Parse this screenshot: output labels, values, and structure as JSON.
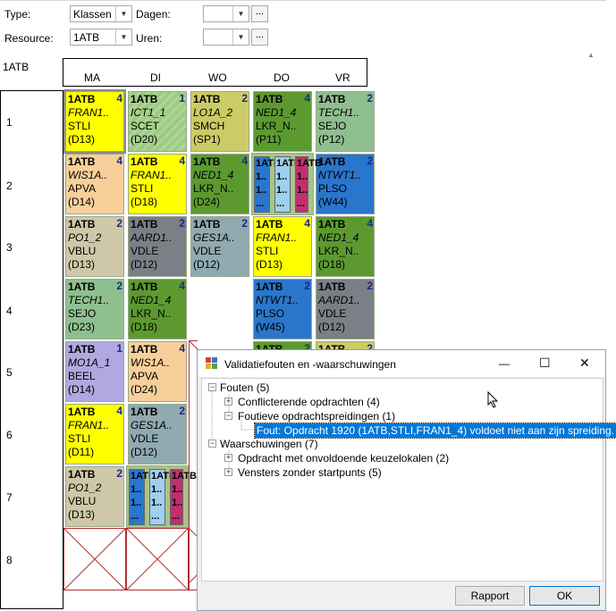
{
  "filters": {
    "type_label": "Type:",
    "type_value": "Klassen",
    "dagen_label": "Dagen:",
    "dagen_value": "",
    "resource_label": "Resource:",
    "resource_value": "1ATB",
    "uren_label": "Uren:",
    "uren_value": "",
    "ellipsis": "..."
  },
  "grid": {
    "class_label": "1ATB",
    "days": [
      "MA",
      "DI",
      "WO",
      "DO",
      "VR"
    ],
    "periods": [
      "1",
      "2",
      "3",
      "4",
      "5",
      "6",
      "7",
      "8"
    ]
  },
  "cards": [
    {
      "t": "1ATB",
      "n": "4",
      "c": "FRAN1..",
      "te": "STLI",
      "r": "(D13)",
      "bg": "#ffff00"
    },
    {
      "t": "1ATB",
      "n": "1",
      "c": "ICT1_1",
      "te": "SCET",
      "r": "(D20)",
      "bg": "#9ccc80"
    },
    {
      "t": "1ATB",
      "n": "2",
      "c": "LO1A_2",
      "te": "SMCH",
      "r": "(SP1)",
      "bg": "#cccc66"
    },
    {
      "t": "1ATB",
      "n": "4",
      "c": "NED1_4",
      "te": "LKR_N..",
      "r": "(P11)",
      "bg": "#5c9a30"
    },
    {
      "t": "1ATB",
      "n": "2",
      "c": "TECH1..",
      "te": "SEJO",
      "r": "(P12)",
      "bg": "#8fbf8f"
    },
    {
      "t": "1ATB",
      "n": "4",
      "c": "WIS1A..",
      "te": "APVA",
      "r": "(D14)",
      "bg": "#f7cf9a"
    },
    {
      "t": "1ATB",
      "n": "4",
      "c": "FRAN1..",
      "te": "STLI",
      "r": "(D18)",
      "bg": "#ffff00"
    },
    {
      "t": "1ATB",
      "n": "4",
      "c": "NED1_4",
      "te": "LKR_N..",
      "r": "(D24)",
      "bg": "#5c9a30"
    },
    {
      "t": "1ATB",
      "n": "2",
      "c": "NTWT1..",
      "te": "PLSO",
      "r": "(W44)",
      "bg": "#2a76cc"
    },
    {
      "t": "1ATB",
      "n": "2",
      "c": "PO1_2",
      "te": "VBLU",
      "r": "(D13)",
      "bg": "#cfc8a8"
    },
    {
      "t": "1ATB",
      "n": "2",
      "c": "AARD1..",
      "te": "VDLE",
      "r": "(D12)",
      "bg": "#7b7f86"
    },
    {
      "t": "1ATB",
      "n": "2",
      "c": "GES1A..",
      "te": "VDLE",
      "r": "(D12)",
      "bg": "#8faab0"
    },
    {
      "t": "1ATB",
      "n": "4",
      "c": "FRAN1..",
      "te": "STLI",
      "r": "(D13)",
      "bg": "#ffff00"
    },
    {
      "t": "1ATB",
      "n": "4",
      "c": "NED1_4",
      "te": "LKR_N..",
      "r": "(D18)",
      "bg": "#5c9a30"
    },
    {
      "t": "1ATB",
      "n": "2",
      "c": "TECH1..",
      "te": "SEJO",
      "r": "(D23)",
      "bg": "#8fbf8f"
    },
    {
      "t": "1ATB",
      "n": "4",
      "c": "NED1_4",
      "te": "LKR_N..",
      "r": "(D18)",
      "bg": "#5c9a30"
    },
    {
      "t": "1ATB",
      "n": "2",
      "c": "NTWT1..",
      "te": "PLSO",
      "r": "(W45)",
      "bg": "#2a76cc"
    },
    {
      "t": "1ATB",
      "n": "2",
      "c": "AARD1..",
      "te": "VDLE",
      "r": "(D12)",
      "bg": "#7b7f86"
    },
    {
      "t": "1ATB",
      "n": "1",
      "c": "MO1A_1",
      "te": "BEEL",
      "r": "(D14)",
      "bg": "#b0a8e0"
    },
    {
      "t": "1ATB",
      "n": "4",
      "c": "WIS1A..",
      "te": "APVA",
      "r": "(D24)",
      "bg": "#f7cf9a"
    },
    {
      "t": "1ATB",
      "n": "4",
      "c": "FRAN1..",
      "te": "STLI",
      "r": "(D11)",
      "bg": "#ffff00"
    },
    {
      "t": "1ATB",
      "n": "2",
      "c": "GES1A..",
      "te": "VDLE",
      "r": "(D12)",
      "bg": "#8faab0"
    },
    {
      "t": "1ATB",
      "n": "2",
      "c": "PO1_2",
      "te": "VBLU",
      "r": "(D13)",
      "bg": "#cfc8a8"
    }
  ],
  "partial_cards": [
    {
      "t": "1ATB",
      "n": "2",
      "bg": "#5c9a30"
    },
    {
      "t": "1ATB",
      "n": "2",
      "bg": "#cccc66"
    }
  ],
  "split_text": {
    "row1": "1ATB",
    "row2": "1..",
    "row3": "1..",
    "row4": "..."
  },
  "dialog": {
    "title": "Validatiefouten en -waarschuwingen",
    "fouten": "Fouten (5)",
    "conflict": "Conflicterende opdrachten (4)",
    "foutieve": "Foutieve opdrachtspreidingen (1)",
    "fout_item": "Fout: Opdracht 1920 (1ATB,STLI,FRAN1_4) voldoet niet aan zijn spreiding.",
    "waarschuwingen": "Waarschuwingen (7)",
    "keuzelokalen": "Opdracht met onvoldoende keuzelokalen (2)",
    "vensters": "Vensters zonder startpunts (5)",
    "rapport": "Rapport",
    "ok": "OK",
    "min_glyph": "—",
    "max_glyph": "☐",
    "close_glyph": "✕",
    "expand_minus": "−",
    "expand_plus": "+"
  }
}
